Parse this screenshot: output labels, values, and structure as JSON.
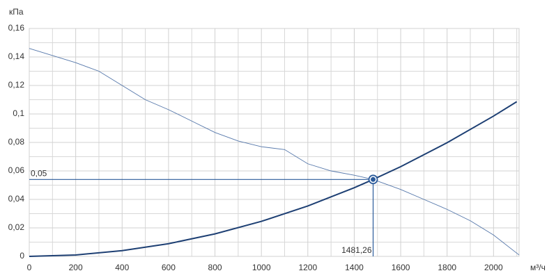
{
  "chart_data": {
    "type": "line",
    "y_unit": "кПа",
    "x_unit": "м³/ч",
    "xlim": [
      0,
      2110
    ],
    "ylim": [
      0,
      0.16
    ],
    "xticks": [
      0,
      200,
      400,
      600,
      800,
      1000,
      1200,
      1400,
      1600,
      1800,
      2000
    ],
    "minor_xticks": [
      100,
      300,
      500,
      700,
      900,
      1100,
      1300,
      1500,
      1700,
      1900,
      2100
    ],
    "yticks": [
      0,
      {
        "value": 0.02,
        "label": "0,02"
      },
      {
        "value": 0.04,
        "label": "0,04"
      },
      {
        "value": 0.06,
        "label": "0,06"
      },
      {
        "value": 0.08,
        "label": "0,08"
      },
      {
        "value": 0.1,
        "label": "0,1"
      },
      {
        "value": 0.12,
        "label": "0,12"
      },
      {
        "value": 0.14,
        "label": "0,14"
      },
      {
        "value": 0.16,
        "label": "0,16"
      }
    ],
    "minor_yticks": [
      0.01,
      0.03,
      0.05,
      0.07,
      0.09,
      0.11,
      0.13,
      0.15
    ],
    "grid": true,
    "series": [
      {
        "color": "#5577aa",
        "x": [
          0,
          100,
          200,
          300,
          400,
          500,
          600,
          700,
          800,
          900,
          1000,
          1100,
          1200,
          1300,
          1400,
          1481.26,
          1600,
          1700,
          1800,
          1900,
          2000,
          2110
        ],
        "values": [
          0.146,
          0.141,
          0.136,
          0.13,
          0.12,
          0.11,
          0.103,
          0.095,
          0.087,
          0.081,
          0.077,
          0.075,
          0.065,
          0.06,
          0.057,
          0.054,
          0.047,
          0.04,
          0.033,
          0.025,
          0.015,
          0.001
        ]
      },
      {
        "color": "#1d3f73",
        "x": [
          0,
          200,
          400,
          600,
          800,
          1000,
          1200,
          1400,
          1481.26,
          1600,
          1800,
          2000,
          2100
        ],
        "values": [
          0,
          0.001,
          0.004,
          0.0089,
          0.0158,
          0.0246,
          0.0354,
          0.0482,
          0.054,
          0.063,
          0.0798,
          0.0985,
          0.1086
        ]
      }
    ],
    "operating_point": {
      "x": 1481.26,
      "y": 0.054,
      "x_label": "1481,26",
      "y_label": "0,05",
      "color": "#2a5a9a"
    }
  }
}
